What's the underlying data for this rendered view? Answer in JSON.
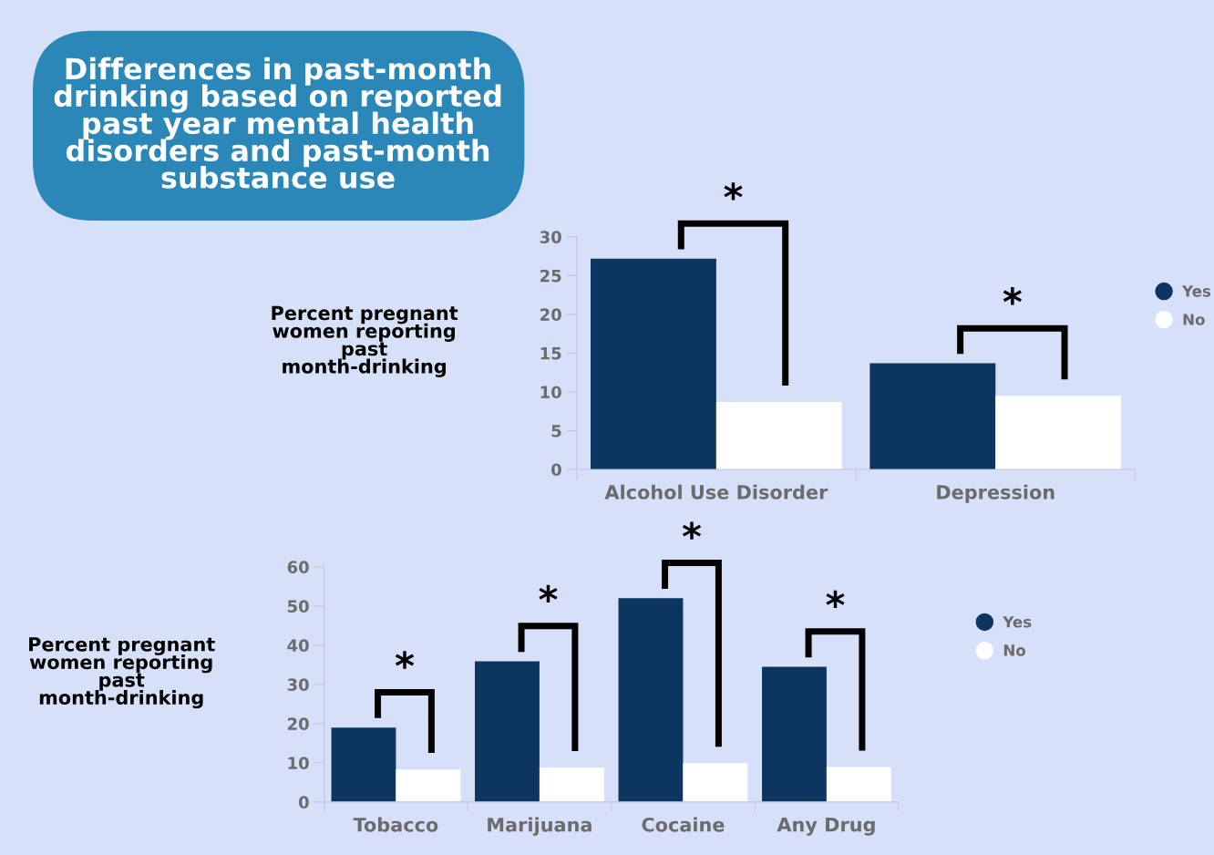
{
  "chart_data": [
    {
      "type": "bar",
      "title": "Differences in past-month\ndrinking based on reported\npast year mental health\ndisorders and past-month\nsubstance use",
      "ylabel": "Percent pregnant\nwomen reporting\npast\nmonth-drinking",
      "categories": [
        "Alcohol Use Disorder",
        "Depression"
      ],
      "series": [
        {
          "name": "Yes",
          "color": "#0c365f",
          "values": [
            27.2,
            13.7
          ]
        },
        {
          "name": "No",
          "color": "#ffffff",
          "values": [
            8.7,
            9.5
          ]
        }
      ],
      "ylim": [
        0,
        30
      ],
      "yticks": [
        0,
        5,
        10,
        15,
        20,
        25,
        30
      ],
      "grid": false,
      "legend": "right",
      "annotations": [
        "*",
        "*"
      ]
    },
    {
      "type": "bar",
      "ylabel": "Percent pregnant\nwomen reporting\npast\nmonth-drinking",
      "categories": [
        "Tobacco",
        "Marijuana",
        "Cocaine",
        "Any Drug"
      ],
      "series": [
        {
          "name": "Yes",
          "color": "#0c365f",
          "values": [
            19.0,
            35.9,
            52.0,
            34.5
          ]
        },
        {
          "name": "No",
          "color": "#ffffff",
          "values": [
            8.3,
            8.8,
            9.9,
            8.9
          ]
        }
      ],
      "ylim": [
        0,
        60
      ],
      "yticks": [
        0,
        10,
        20,
        30,
        40,
        50,
        60
      ],
      "grid": false,
      "legend": "right",
      "annotations": [
        "*",
        "*",
        "*",
        "*"
      ]
    }
  ]
}
